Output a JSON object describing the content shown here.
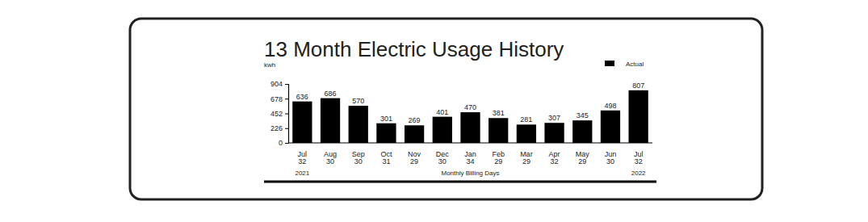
{
  "chart_data": {
    "type": "bar",
    "title": "13 Month Electric Usage History",
    "y_label": "kwh",
    "x_label": "Monthly Billing Days",
    "categories": [
      "Jul",
      "Aug",
      "Sep",
      "Oct",
      "Nov",
      "Dec",
      "Jan",
      "Feb",
      "Mar",
      "Apr",
      "May",
      "Jun",
      "Jul"
    ],
    "billing_days": [
      32,
      30,
      30,
      31,
      29,
      30,
      34,
      29,
      29,
      32,
      29,
      30,
      32
    ],
    "years": [
      2021,
      2022
    ],
    "series": [
      {
        "name": "Actual",
        "color": "#000000",
        "values": [
          636,
          686,
          570,
          301,
          269,
          401,
          470,
          381,
          281,
          307,
          345,
          498,
          807
        ]
      }
    ],
    "ylim": [
      0,
      904
    ],
    "yticks": [
      0,
      226,
      452,
      678,
      904
    ],
    "grid": false,
    "legend": "top-right",
    "data_labels": true
  }
}
